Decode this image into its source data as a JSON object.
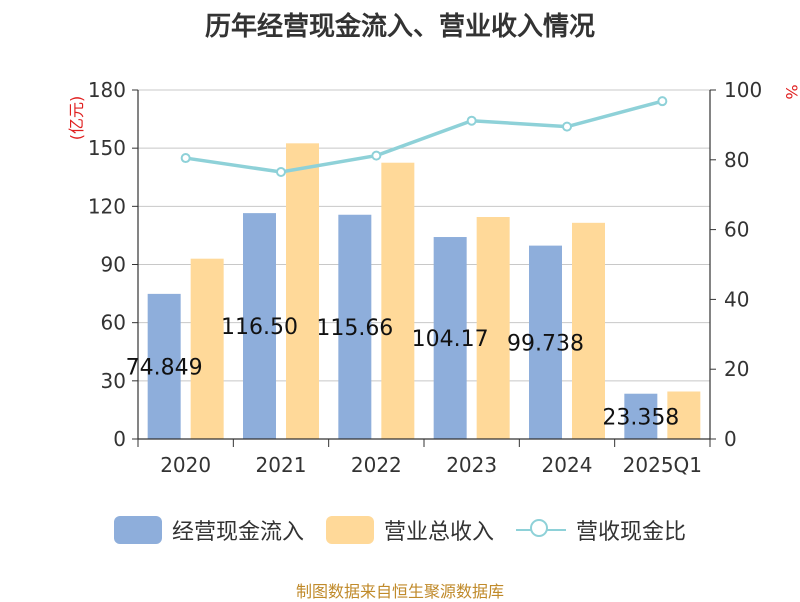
{
  "title": "历年经营现金流入、营业收入情况",
  "source": "制图数据来自恒生聚源数据库",
  "colors": {
    "cash": "#8eaedb",
    "revenue": "#ffd999",
    "ratio": "#8ed1d8"
  },
  "chart_data": {
    "type": "bar",
    "title": "历年经营现金流入、营业收入情况",
    "categories": [
      "2020",
      "2021",
      "2022",
      "2023",
      "2024",
      "2025Q1"
    ],
    "y_left": {
      "unit": "(亿元)",
      "lim": [
        0,
        180
      ],
      "ticks": [
        0,
        30,
        60,
        90,
        120,
        150,
        180
      ]
    },
    "y_right": {
      "unit": "%",
      "lim": [
        0,
        100
      ],
      "ticks": [
        0,
        20,
        40,
        60,
        80,
        100
      ]
    },
    "series": [
      {
        "name": "经营现金流入",
        "type": "bar",
        "axis": "left",
        "values": [
          74.849,
          116.5,
          115.66,
          104.17,
          99.738,
          23.358
        ],
        "labels": [
          "74.849",
          "116.50",
          "115.66",
          "104.17",
          "99.738",
          "23.358"
        ]
      },
      {
        "name": "营业总收入",
        "type": "bar",
        "axis": "left",
        "values": [
          93.0,
          152.5,
          142.5,
          114.5,
          111.5,
          24.5
        ]
      },
      {
        "name": "营收现金比",
        "type": "line",
        "axis": "right",
        "values": [
          80.5,
          76.5,
          81.2,
          91.2,
          89.5,
          96.8
        ]
      }
    ],
    "grid": true,
    "legend_position": "bottom"
  }
}
